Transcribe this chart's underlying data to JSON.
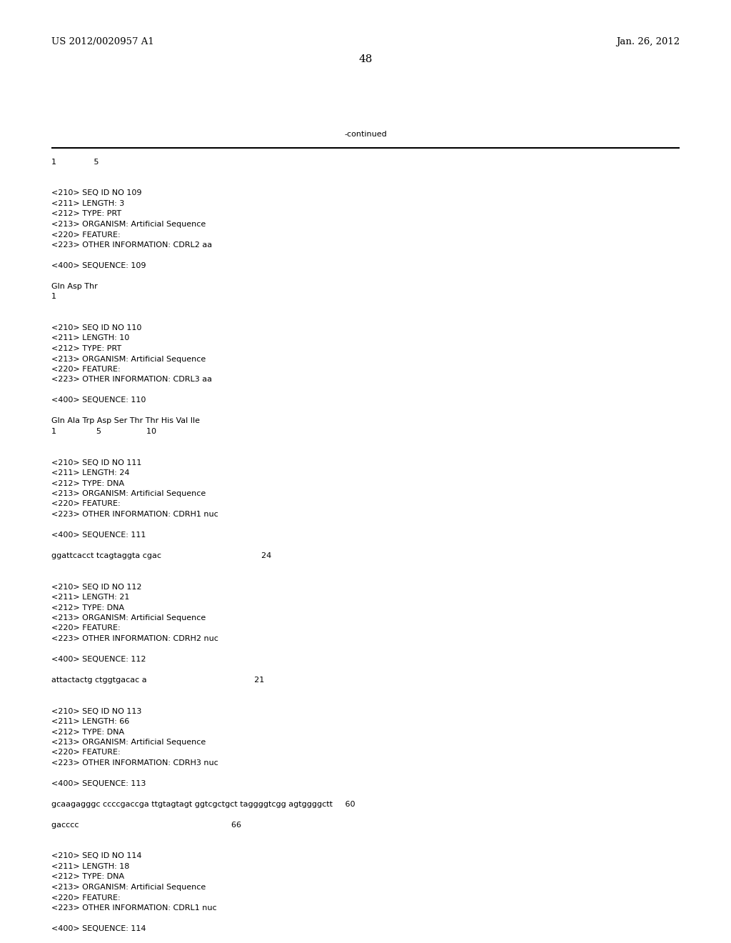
{
  "background_color": "#ffffff",
  "header_left": "US 2012/0020957 A1",
  "header_right": "Jan. 26, 2012",
  "page_number": "48",
  "continued_label": "-continued",
  "header_font_size": 9.5,
  "page_num_font_size": 11,
  "body_font_size": 8.0,
  "mono_font": "Courier New",
  "content_lines": [
    "1               5",
    "",
    "",
    "<210> SEQ ID NO 109",
    "<211> LENGTH: 3",
    "<212> TYPE: PRT",
    "<213> ORGANISM: Artificial Sequence",
    "<220> FEATURE:",
    "<223> OTHER INFORMATION: CDRL2 aa",
    "",
    "<400> SEQUENCE: 109",
    "",
    "Gln Asp Thr",
    "1",
    "",
    "",
    "<210> SEQ ID NO 110",
    "<211> LENGTH: 10",
    "<212> TYPE: PRT",
    "<213> ORGANISM: Artificial Sequence",
    "<220> FEATURE:",
    "<223> OTHER INFORMATION: CDRL3 aa",
    "",
    "<400> SEQUENCE: 110",
    "",
    "Gln Ala Trp Asp Ser Thr Thr His Val Ile",
    "1                5                  10",
    "",
    "",
    "<210> SEQ ID NO 111",
    "<211> LENGTH: 24",
    "<212> TYPE: DNA",
    "<213> ORGANISM: Artificial Sequence",
    "<220> FEATURE:",
    "<223> OTHER INFORMATION: CDRH1 nuc",
    "",
    "<400> SEQUENCE: 111",
    "",
    "ggattcacct tcagtaggta cgac                                        24",
    "",
    "",
    "<210> SEQ ID NO 112",
    "<211> LENGTH: 21",
    "<212> TYPE: DNA",
    "<213> ORGANISM: Artificial Sequence",
    "<220> FEATURE:",
    "<223> OTHER INFORMATION: CDRH2 nuc",
    "",
    "<400> SEQUENCE: 112",
    "",
    "attactactg ctggtgacac a                                           21",
    "",
    "",
    "<210> SEQ ID NO 113",
    "<211> LENGTH: 66",
    "<212> TYPE: DNA",
    "<213> ORGANISM: Artificial Sequence",
    "<220> FEATURE:",
    "<223> OTHER INFORMATION: CDRH3 nuc",
    "",
    "<400> SEQUENCE: 113",
    "",
    "gcaagagggc ccccgaccga ttgtagtagt ggtcgctgct taggggtcgg agtggggctt     60",
    "",
    "gacccc                                                             66",
    "",
    "",
    "<210> SEQ ID NO 114",
    "<211> LENGTH: 18",
    "<212> TYPE: DNA",
    "<213> ORGANISM: Artificial Sequence",
    "<220> FEATURE:",
    "<223> OTHER INFORMATION: CDRL1 nuc",
    "",
    "<400> SEQUENCE: 114"
  ]
}
